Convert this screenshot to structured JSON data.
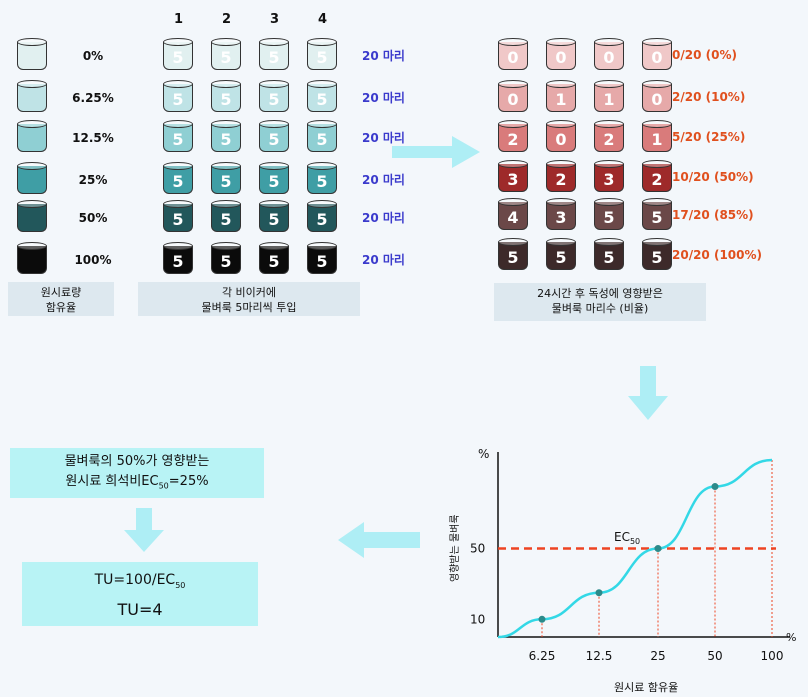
{
  "left_rows": [
    {
      "conc": "0%",
      "color": "#e1f0f0"
    },
    {
      "conc": "6.25%",
      "color": "#bfe3e6"
    },
    {
      "conc": "12.5%",
      "color": "#8fcfd3"
    },
    {
      "conc": "25%",
      "color": "#3f9ea5"
    },
    {
      "conc": "50%",
      "color": "#22575b"
    },
    {
      "conc": "100%",
      "color": "#0b0b0b"
    }
  ],
  "beaker_columns": [
    "1",
    "2",
    "3",
    "4"
  ],
  "beaker_number": "5",
  "row_count_label": "20 마리",
  "label_left": [
    "원시료량",
    "함유율"
  ],
  "label_mid": [
    "각 비이커에",
    "물벼룩 5마리씩 투입"
  ],
  "result_rows": [
    {
      "values": [
        "0",
        "0",
        "0",
        "0"
      ],
      "result": "0/20 (0%)",
      "color": "#f0c8c8"
    },
    {
      "values": [
        "0",
        "1",
        "1",
        "0"
      ],
      "result": "2/20 (10%)",
      "color": "#e6a9a9"
    },
    {
      "values": [
        "2",
        "0",
        "2",
        "1"
      ],
      "result": "5/20 (25%)",
      "color": "#d97b7b"
    },
    {
      "values": [
        "3",
        "2",
        "3",
        "2"
      ],
      "result": "10/20 (50%)",
      "color": "#9e2a2a"
    },
    {
      "values": [
        "4",
        "3",
        "5",
        "5"
      ],
      "result": "17/20 (85%)",
      "color": "#6b4848"
    },
    {
      "values": [
        "5",
        "5",
        "5",
        "5"
      ],
      "result": "20/20 (100%)",
      "color": "#3d2a2a"
    }
  ],
  "label_result": [
    "24시간 후 독성에 영향받은",
    "물벼룩 마리수 (비율)"
  ],
  "conclusion": {
    "line1": "물벼룩의 50%가 영향받는",
    "line2_prefix": "원시료 희석비EC",
    "line2_sub": "50",
    "line2_suffix": "=25%"
  },
  "tu": {
    "formula_prefix": "TU=100/EC",
    "formula_sub": "50",
    "result": "TU=4"
  },
  "chart_data": {
    "type": "line",
    "x_categories": [
      "6.25",
      "12.5",
      "25",
      "50",
      "100"
    ],
    "points": [
      {
        "x": "6.25",
        "y": 10
      },
      {
        "x": "12.5",
        "y": 25
      },
      {
        "x": "25",
        "y": 50
      },
      {
        "x": "50",
        "y": 85
      },
      {
        "x": "100",
        "y": 100
      }
    ],
    "y_ticks": [
      "10",
      "50"
    ],
    "y_unit": "%",
    "x_unit": "%",
    "ylabel": "영향받는 물벼룩",
    "xlabel": "원시료 함유율",
    "annotation": {
      "label": "EC",
      "sub": "50"
    },
    "reference_line_y": 50,
    "curve_color": "#33d8e6",
    "reference_color": "#ee4422"
  },
  "colors": {
    "arrow": "#aeeef5",
    "label_bg": "#dde8ef",
    "cyan_box": "#b8f3f5",
    "count_text": "#3a3acc",
    "result_text": "#e0501e"
  }
}
